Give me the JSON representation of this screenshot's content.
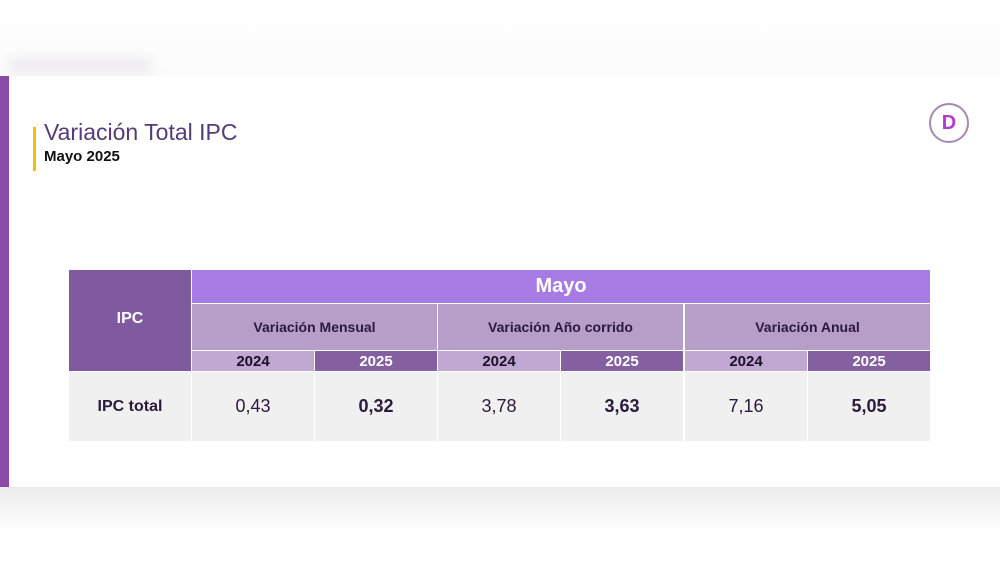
{
  "header": {
    "title": "Variación Total IPC",
    "subtitle": "Mayo 2025",
    "logo_letter": "D"
  },
  "colors": {
    "accent_bar": "#8a4aa8",
    "title_underline": "#f2c200",
    "month_band": "#a77be4",
    "row_header": "#7f5a9e",
    "group_header": "#b79ec9",
    "year_2024": "#c0a8d2",
    "year_2025": "#8560a0",
    "data_row": "#f0f0f0"
  },
  "table": {
    "row_header_label": "IPC",
    "month": "Mayo",
    "groups": [
      {
        "label": "Variación Mensual",
        "years": [
          "2024",
          "2025"
        ],
        "values": [
          "0,43",
          "0,32"
        ]
      },
      {
        "label": "Variación Año corrido",
        "years": [
          "2024",
          "2025"
        ],
        "values": [
          "3,78",
          "3,63"
        ]
      },
      {
        "label": "Variación Anual",
        "years": [
          "2024",
          "2025"
        ],
        "values": [
          "7,16",
          "5,05"
        ]
      }
    ],
    "row_label": "IPC total"
  }
}
